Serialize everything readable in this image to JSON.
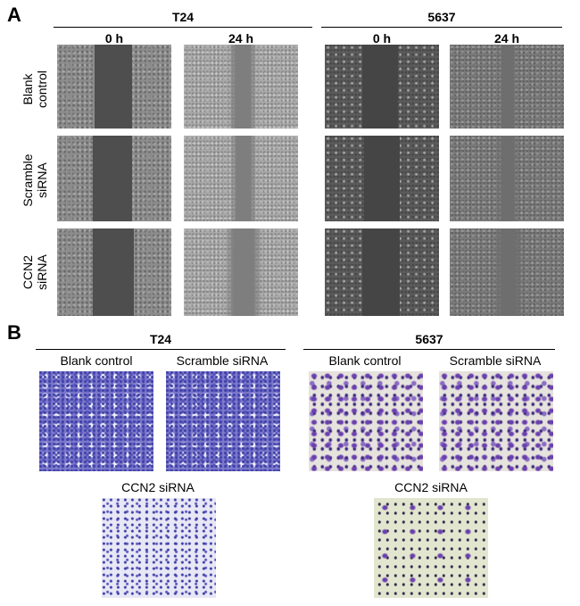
{
  "panel_a": {
    "letter": "A",
    "cell_lines": [
      "T24",
      "5637"
    ],
    "time_points": [
      "0 h",
      "24 h",
      "0 h",
      "24 h"
    ],
    "row_labels": [
      {
        "line1": "Blank",
        "line2": "control"
      },
      {
        "line1": "Scramble",
        "line2": "siRNA"
      },
      {
        "line1": "CCN2",
        "line2": "siRNA"
      }
    ]
  },
  "panel_b": {
    "letter": "B",
    "cell_lines": [
      "T24",
      "5637"
    ],
    "conditions": {
      "t24": [
        "Blank control",
        "Scramble siRNA",
        "CCN2 siRNA"
      ],
      "c5637": [
        "Blank control",
        "Scramble siRNA",
        "CCN2 siRNA"
      ]
    }
  }
}
